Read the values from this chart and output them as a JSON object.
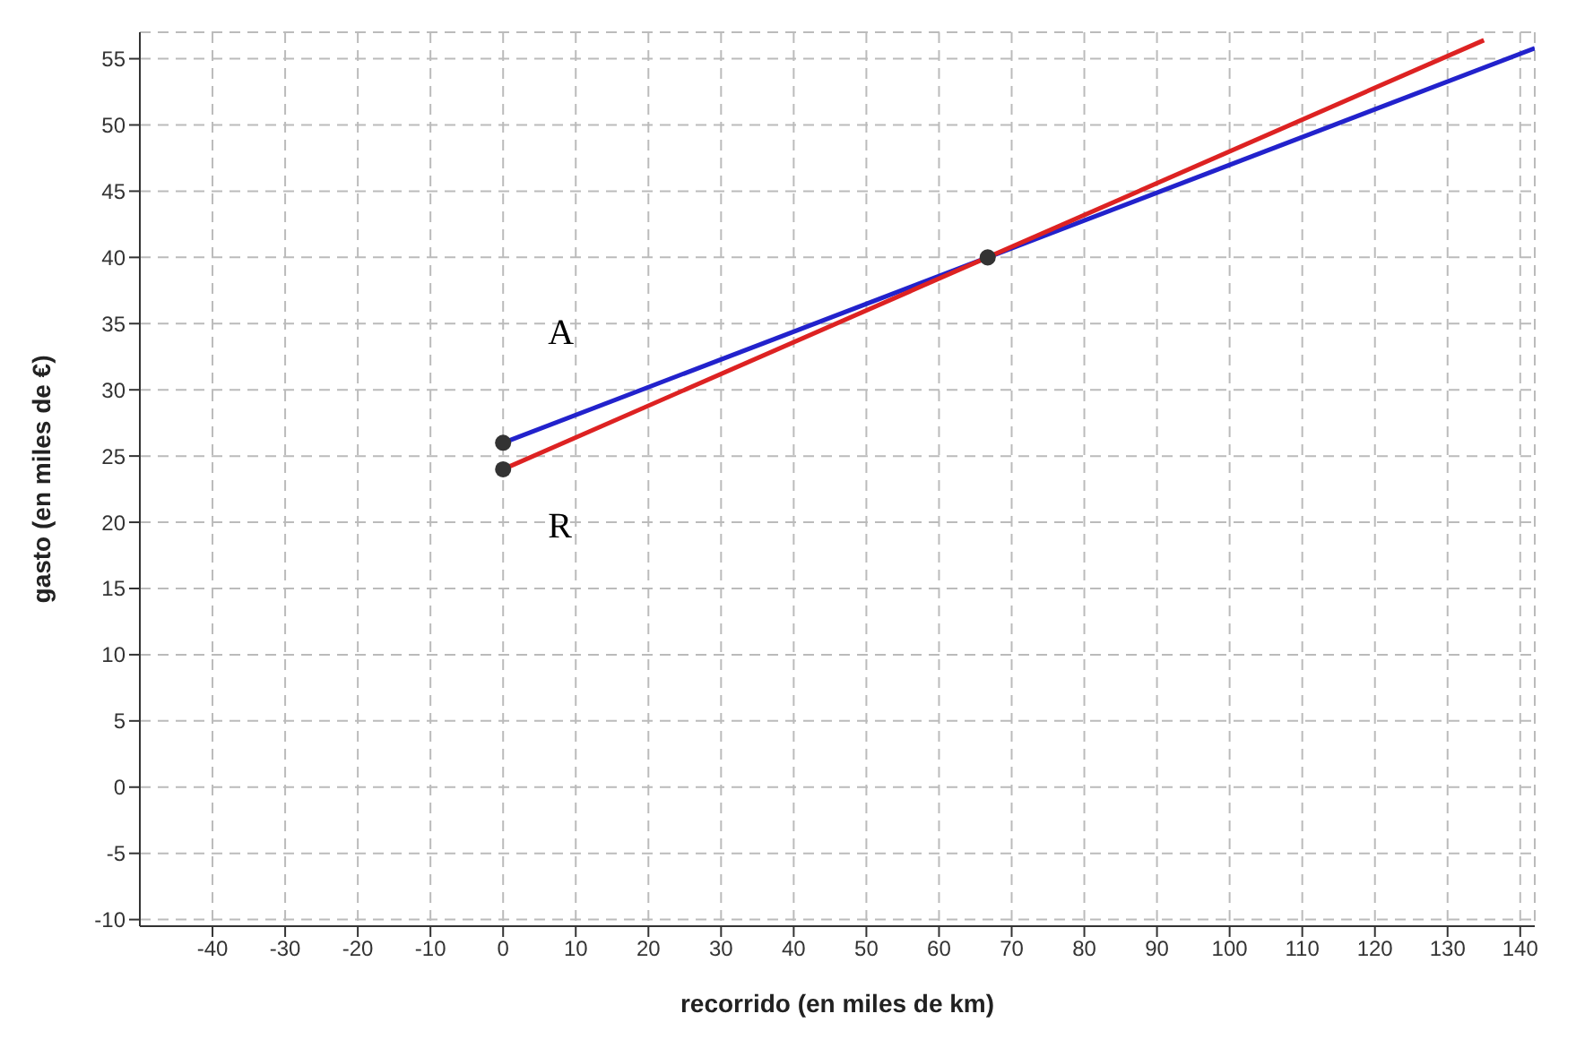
{
  "chart_data": {
    "type": "line",
    "xlabel": "recorrido (en miles de km)",
    "ylabel": "gasto (en miles de €)",
    "xlim": [
      -50,
      142
    ],
    "ylim": [
      -10.5,
      57
    ],
    "xticks": [
      -40,
      -30,
      -20,
      -10,
      0,
      10,
      20,
      30,
      40,
      50,
      60,
      70,
      80,
      90,
      100,
      110,
      120,
      130,
      140
    ],
    "yticks": [
      -10,
      -5,
      0,
      5,
      10,
      15,
      20,
      25,
      30,
      35,
      40,
      45,
      50,
      55
    ],
    "grid": true,
    "line_style": "solid",
    "marker": "none",
    "series": [
      {
        "name": "A",
        "color": "#2222cc",
        "x": [
          0,
          142
        ],
        "values": [
          26,
          55.8
        ]
      },
      {
        "name": "R",
        "color": "#dd2222",
        "x": [
          0,
          135
        ],
        "values": [
          24,
          56.4
        ]
      },
      {
        "type": "scatter",
        "color": "#333333",
        "marker": "circle",
        "x": [
          0,
          0,
          66.7
        ],
        "values": [
          26,
          24,
          40
        ]
      }
    ]
  }
}
